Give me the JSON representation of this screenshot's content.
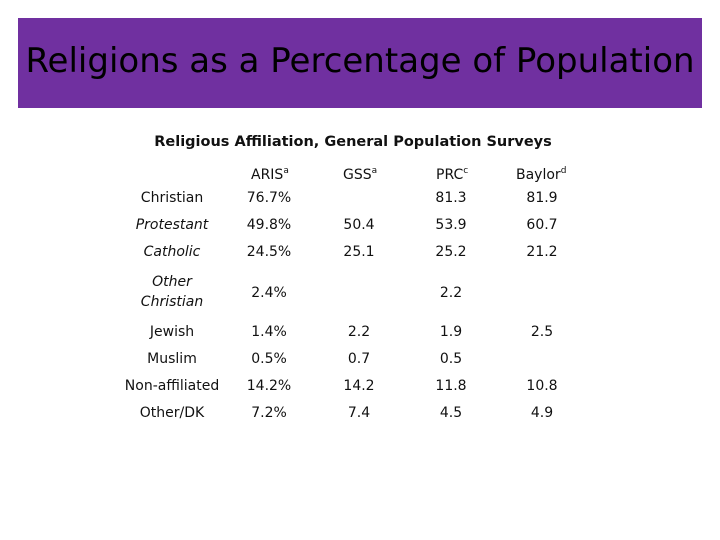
{
  "slide": {
    "title": "Religions as a Percentage of Population",
    "accent_color": "#7030a0"
  },
  "table": {
    "caption": "Religious Affiliation, General Population Surveys",
    "headers": [
      {
        "name": "ARIS",
        "sup": "a"
      },
      {
        "name": "GSS",
        "sup": "a"
      },
      {
        "name": "PRC",
        "sup": "c"
      },
      {
        "name": "Baylor",
        "sup": "d"
      }
    ],
    "rows": [
      {
        "label": "Christian",
        "values": [
          "76.7%",
          "",
          "81.3",
          "81.9"
        ]
      },
      {
        "label": "Protestant",
        "values": [
          "49.8%",
          "50.4",
          "53.9",
          "60.7"
        ]
      },
      {
        "label": "Catholic",
        "values": [
          "24.5%",
          "25.1",
          "25.2",
          "21.2"
        ]
      },
      {
        "label_line1": "Other",
        "label_line2": "Christian",
        "values": [
          "2.4%",
          "",
          "2.2",
          ""
        ]
      },
      {
        "label": "Jewish",
        "values": [
          "1.4%",
          "2.2",
          "1.9",
          "2.5"
        ]
      },
      {
        "label": "Muslim",
        "values": [
          "0.5%",
          "0.7",
          "0.5",
          ""
        ]
      },
      {
        "label": "Non-affiliated",
        "values": [
          "14.2%",
          "14.2",
          "11.8",
          "10.8"
        ]
      },
      {
        "label": "Other/DK",
        "values": [
          "7.2%",
          "7.4",
          "4.5",
          "4.9"
        ]
      }
    ]
  }
}
